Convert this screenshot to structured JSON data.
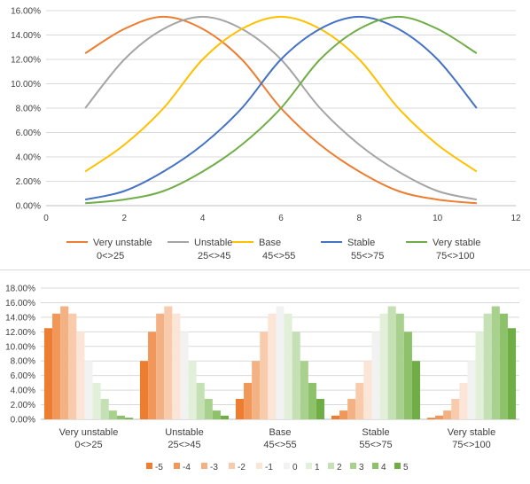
{
  "chart_data": [
    {
      "type": "line",
      "title": "",
      "xlabel": "",
      "ylabel": "",
      "xlim": [
        0,
        12
      ],
      "ylim": [
        0,
        0.16
      ],
      "x_ticks": [
        "0",
        "2",
        "4",
        "6",
        "8",
        "10",
        "12"
      ],
      "y_ticks": [
        "0.00%",
        "2.00%",
        "4.00%",
        "6.00%",
        "8.00%",
        "10.00%",
        "12.00%",
        "14.00%",
        "16.00%"
      ],
      "grid": "horizontal",
      "legend_position": "bottom",
      "x": [
        1,
        2,
        3,
        4,
        5,
        6,
        7,
        8,
        9,
        10,
        11
      ],
      "series": [
        {
          "name": "Very unstable",
          "range": "0<>25",
          "color": "#ed7d31",
          "values": [
            0.125,
            0.145,
            0.155,
            0.145,
            0.12,
            0.08,
            0.05,
            0.028,
            0.012,
            0.005,
            0.002
          ]
        },
        {
          "name": "Unstable",
          "range": "25<>45",
          "color": "#a5a5a5",
          "values": [
            0.08,
            0.12,
            0.145,
            0.155,
            0.145,
            0.12,
            0.08,
            0.05,
            0.028,
            0.012,
            0.005
          ]
        },
        {
          "name": "Base",
          "range": "45<>55",
          "color": "#ffc000",
          "values": [
            0.028,
            0.05,
            0.08,
            0.12,
            0.145,
            0.155,
            0.145,
            0.12,
            0.08,
            0.05,
            0.028
          ]
        },
        {
          "name": "Stable",
          "range": "55<>75",
          "color": "#4472c4",
          "values": [
            0.005,
            0.012,
            0.028,
            0.05,
            0.08,
            0.12,
            0.145,
            0.155,
            0.145,
            0.12,
            0.08
          ]
        },
        {
          "name": "Very stable",
          "range": "75<>100",
          "color": "#70ad47",
          "values": [
            0.002,
            0.005,
            0.012,
            0.028,
            0.05,
            0.08,
            0.12,
            0.145,
            0.155,
            0.145,
            0.125
          ]
        }
      ]
    },
    {
      "type": "bar",
      "title": "",
      "xlabel": "",
      "ylabel": "",
      "ylim": [
        0,
        0.18
      ],
      "y_ticks": [
        "0.00%",
        "2.00%",
        "4.00%",
        "6.00%",
        "8.00%",
        "10.00%",
        "12.00%",
        "14.00%",
        "16.00%",
        "18.00%"
      ],
      "grid": "horizontal",
      "legend_position": "bottom",
      "categories": [
        {
          "name": "Very unstable",
          "range": "0<>25"
        },
        {
          "name": "Unstable",
          "range": "25<>45"
        },
        {
          "name": "Base",
          "range": "45<>55"
        },
        {
          "name": "Stable",
          "range": "55<>75"
        },
        {
          "name": "Very stable",
          "range": "75<>100"
        }
      ],
      "series": [
        {
          "name": "-5",
          "color": "#ed7d31",
          "values": [
            0.125,
            0.08,
            0.028,
            0.005,
            0.002
          ]
        },
        {
          "name": "-4",
          "color": "#f1975a",
          "values": [
            0.145,
            0.12,
            0.05,
            0.012,
            0.005
          ]
        },
        {
          "name": "-3",
          "color": "#f4b183",
          "values": [
            0.155,
            0.145,
            0.08,
            0.028,
            0.012
          ]
        },
        {
          "name": "-2",
          "color": "#f8cbad",
          "values": [
            0.145,
            0.155,
            0.12,
            0.05,
            0.028
          ]
        },
        {
          "name": "-1",
          "color": "#fbe5d6",
          "values": [
            0.12,
            0.145,
            0.145,
            0.08,
            0.05
          ]
        },
        {
          "name": "0",
          "color": "#f2f2f2",
          "values": [
            0.08,
            0.12,
            0.155,
            0.12,
            0.08
          ]
        },
        {
          "name": "1",
          "color": "#e2f0d9",
          "values": [
            0.05,
            0.08,
            0.145,
            0.145,
            0.12
          ]
        },
        {
          "name": "2",
          "color": "#c5e0b4",
          "values": [
            0.028,
            0.05,
            0.12,
            0.155,
            0.145
          ]
        },
        {
          "name": "3",
          "color": "#a9d18e",
          "values": [
            0.012,
            0.028,
            0.08,
            0.145,
            0.155
          ]
        },
        {
          "name": "4",
          "color": "#8dc26a",
          "values": [
            0.005,
            0.012,
            0.05,
            0.12,
            0.145
          ]
        },
        {
          "name": "5",
          "color": "#70ad47",
          "values": [
            0.002,
            0.005,
            0.028,
            0.08,
            0.125
          ]
        }
      ]
    }
  ]
}
